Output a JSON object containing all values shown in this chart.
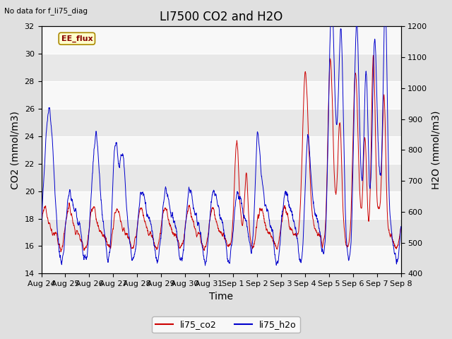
{
  "title": "LI7500 CO2 and H2O",
  "top_left_text": "No data for f_li75_diag",
  "xlabel": "Time",
  "ylabel_left": "CO2 (mmol/m3)",
  "ylabel_right": "H2O (mmol/m3)",
  "ylim_left": [
    14,
    32
  ],
  "ylim_right": [
    400,
    1200
  ],
  "yticks_left": [
    14,
    16,
    18,
    20,
    22,
    24,
    26,
    28,
    30,
    32
  ],
  "yticks_right": [
    400,
    500,
    600,
    700,
    800,
    900,
    1000,
    1100,
    1200
  ],
  "x_tick_labels": [
    "Aug 24",
    "Aug 25",
    "Aug 26",
    "Aug 27",
    "Aug 28",
    "Aug 29",
    "Aug 30",
    "Aug 31",
    "Sep 1",
    "Sep 2",
    "Sep 3",
    "Sep 4",
    "Sep 5",
    "Sep 6",
    "Sep 7",
    "Sep 8"
  ],
  "legend_labels": [
    "li75_co2",
    "li75_h2o"
  ],
  "co2_color": "#cc0000",
  "h2o_color": "#0000cc",
  "annotation_box": "EE_flux",
  "annotation_box_bg": "#ffffcc",
  "annotation_box_border": "#aa8800",
  "fig_bg_color": "#e0e0e0",
  "plot_bg_color": "#f2f2f2",
  "band_color_light": "#f8f8f8",
  "band_color_dark": "#e8e8e8",
  "grid_color": "#d0d0d0",
  "title_fontsize": 12,
  "axis_label_fontsize": 10,
  "tick_fontsize": 8,
  "legend_fontsize": 9,
  "n_days": 15,
  "n_points_per_day": 144
}
